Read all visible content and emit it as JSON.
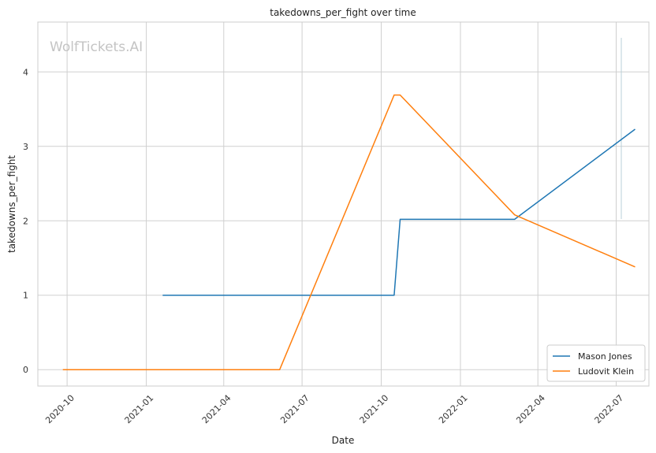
{
  "chart_data": {
    "type": "line",
    "title": "takedowns_per_fight over time",
    "xlabel": "Date",
    "ylabel": "takedowns_per_fight",
    "watermark": "WolfTickets.AI",
    "x_ticks": [
      "2020-10",
      "2021-01",
      "2021-04",
      "2021-07",
      "2021-10",
      "2022-01",
      "2022-04",
      "2022-07"
    ],
    "y_ticks": [
      0,
      1,
      2,
      3,
      4
    ],
    "xlim": [
      "2020-08-28",
      "2022-08-08"
    ],
    "ylim": [
      -0.22,
      4.67
    ],
    "grid": true,
    "legend_position": "bottom-right",
    "series": [
      {
        "name": "Mason Jones",
        "color": "#1f77b4",
        "points": [
          [
            "2021-01-20",
            1.0
          ],
          [
            "2021-10-16",
            1.0
          ],
          [
            "2021-10-23",
            2.02
          ],
          [
            "2022-03-05",
            2.02
          ],
          [
            "2022-07-23",
            3.23
          ]
        ]
      },
      {
        "name": "Ludovit Klein",
        "color": "#ff7f0e",
        "points": [
          [
            "2020-09-26",
            0.0
          ],
          [
            "2021-06-05",
            0.0
          ],
          [
            "2021-10-16",
            3.69
          ],
          [
            "2021-10-23",
            3.69
          ],
          [
            "2022-03-05",
            2.08
          ],
          [
            "2022-07-23",
            1.38
          ]
        ]
      }
    ]
  }
}
